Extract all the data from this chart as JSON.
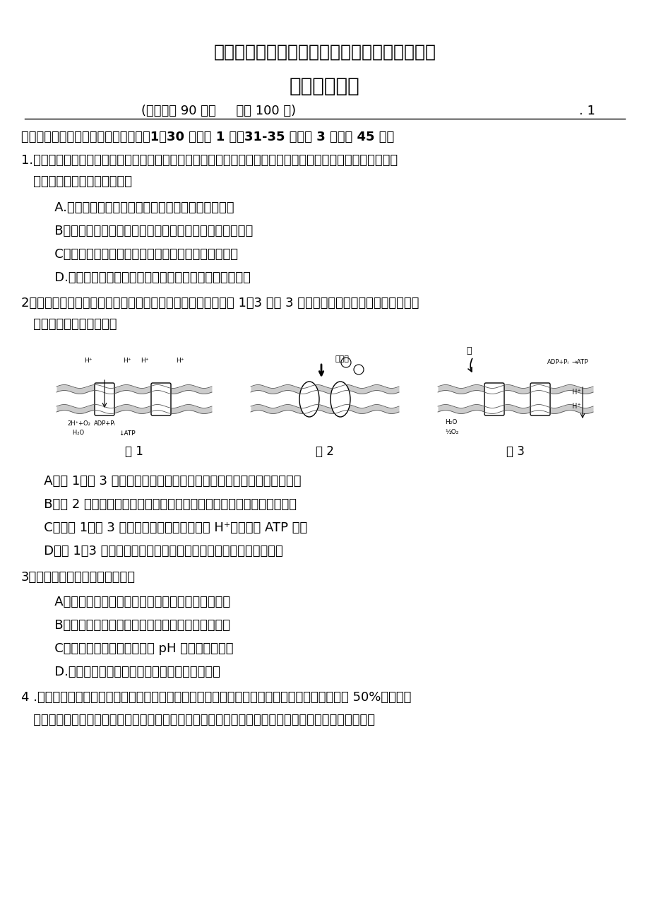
{
  "bg_color": "#ffffff",
  "title1": "北京市朝阳区～高三年级第一学期期末统一考试",
  "title2": "生物学科试卷",
  "subtitle": "(考试时间 90 分钟     满分 100 分)",
  "page_num": ". 1",
  "section1": "一、选择题（每题只有一种对的答案。1～30 题每题 1 分，31-35 题每题 3 分，共 45 分）",
  "q1_text": "1.人们常常食用的牛、羊、猪等肉类和白菜、土豆等蔬菜，经消化吸收后，其中的成分可被转化为人体的构成成",
  "q1_text2": "   分。对以上事实解释合理的是",
  "q1_A": "   A.构成生物体细胞的化学元素在无机自然界都能找到",
  "q1_B": "   B．不同生物的细胞内，构成它们的化学元素含量大体相似",
  "q1_C": "   C．构成生物体细胞的生物大分子都是以碳链作为骨架",
  "q1_D": "   D.不同生物的细胞内，构成它们的化学元素种类大体相似",
  "q2_text": "2．生物膜系统在细胞的生命活动中发挥着极其重要的作用。图 1～3 表达 3 种生物膜构造及其所发生的部分生理",
  "q2_text2": "   过程。下列说法错误的是",
  "fig1_label": "图 1",
  "fig2_label": "图 2",
  "fig3_label": "图 3",
  "q2_A": "A．图 1、图 3 所示生理过程的发生场合分别是线粒体内膜和叶绿体内膜",
  "q2_B": "B．图 2 特定受体蛋白与特定信号分子结合，阐明细胞间可进行信息交流",
  "q2_C": "C．从图 1、图 3 所示的生理过程可知，随着 H⁺的运送有 ATP 生成",
  "q2_D": "D．图 1～3 中生物膜功能不同，重要由于生物膜上蛋白质种类不同",
  "q3_text": "3．下列有关酶的论述，对的的是",
  "q3_A": "   A．酶具有催化作用并都能与双缩脲试剂反映呈紫色",
  "q3_B": "   B．细胞代谢可以有条不紊地进行与酶的专一性有关",
  "q3_C": "   C．酶合适在最适温度及最适 pH 条件下长期保存",
  "q3_D": "   D.可用过氧化氢作底来探究温度对酶活性的影响",
  "q4_text": "4 .图甲表达全光照和不同限度遮光对某植物叶片中叶绿素含量的影响，图乙表达初夏某天在遮光 50%条件下，",
  "q4_text2": "   温度、光照强度、该植物净光合速率和气孔导度（气孔张开的限度）的日变化趋势。下列说法错误的是"
}
